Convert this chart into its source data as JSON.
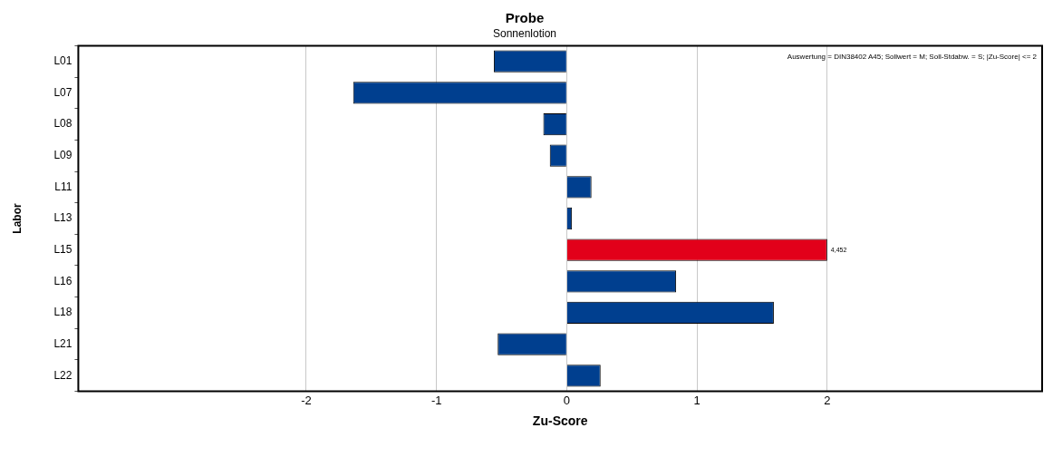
{
  "chart_data": {
    "type": "bar",
    "orientation": "horizontal",
    "title": "Probe",
    "subtitle": "Sonnenlotion",
    "xlabel": "Zu-Score",
    "ylabel": "Labor",
    "categories": [
      "L01",
      "L07",
      "L08",
      "L09",
      "L11",
      "L13",
      "L15",
      "L16",
      "L18",
      "L21",
      "L22"
    ],
    "values": [
      -0.56,
      -1.64,
      -0.18,
      -0.13,
      0.19,
      0.04,
      2,
      0.84,
      1.59,
      -0.53,
      0.26
    ],
    "colors": [
      "#003f8f",
      "#003f8f",
      "#003f8f",
      "#003f8f",
      "#003f8f",
      "#003f8f",
      "#e2001a",
      "#003f8f",
      "#003f8f",
      "#003f8f",
      "#003f8f"
    ],
    "xlim": [
      -3.75,
      3.65
    ],
    "xticks": [
      -2,
      -1,
      0,
      1,
      2
    ],
    "grid": "x",
    "legend": false,
    "annotations": [
      "Auswertung = DIN38402 A45; Sollwert = M; Soll-Stdabw. = S; |Zu-Score| <= 2",
      {
        "text": "4,452",
        "x": 2,
        "y": "L15"
      }
    ]
  }
}
